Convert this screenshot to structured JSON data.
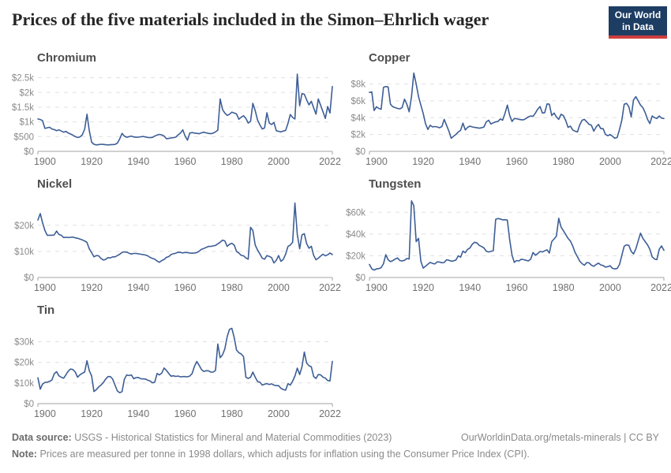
{
  "header": {
    "title": "Prices of the five materials included in the Simon–Ehrlich wager",
    "logo": {
      "line1": "Our World",
      "line2": "in Data",
      "bg": "#1d3d63",
      "accent": "#cf3e3e"
    }
  },
  "style": {
    "line_color": "#3d5e96",
    "grid_color": "#e0e0e0",
    "axis_color": "#a3a3a3",
    "y_label_color": "#8b8b8b",
    "x_label_color": "#707070"
  },
  "chart_data": [
    {
      "type": "line",
      "title": "Chromium",
      "x_range": [
        1897,
        2023
      ],
      "y_range": [
        0,
        2730
      ],
      "start_year": 1897,
      "x_ticks": [
        1900,
        1920,
        1940,
        1960,
        1980,
        2000,
        2022
      ],
      "y_ticks": [
        {
          "value": 0,
          "label": "$0"
        },
        {
          "value": 500,
          "label": "$500"
        },
        {
          "value": 1000,
          "label": "$1k"
        },
        {
          "value": 1500,
          "label": "$1.5k"
        },
        {
          "value": 2000,
          "label": "$2k"
        },
        {
          "value": 2500,
          "label": "$2.5k"
        }
      ],
      "values": [
        1100,
        1080,
        1040,
        780,
        800,
        820,
        760,
        740,
        700,
        730,
        690,
        650,
        680,
        620,
        590,
        550,
        500,
        470,
        490,
        560,
        750,
        1260,
        700,
        310,
        240,
        220,
        230,
        240,
        235,
        225,
        220,
        225,
        230,
        235,
        280,
        420,
        610,
        520,
        480,
        500,
        520,
        490,
        480,
        485,
        495,
        505,
        490,
        475,
        465,
        475,
        520,
        555,
        575,
        560,
        520,
        430,
        440,
        455,
        465,
        485,
        560,
        620,
        730,
        520,
        380,
        620,
        640,
        620,
        610,
        600,
        630,
        650,
        630,
        610,
        600,
        620,
        660,
        720,
        1780,
        1420,
        1300,
        1220,
        1260,
        1330,
        1300,
        1270,
        1090,
        1160,
        1210,
        1120,
        960,
        1020,
        1630,
        1380,
        1060,
        900,
        760,
        800,
        1310,
        960,
        910,
        980,
        700,
        680,
        660,
        690,
        710,
        950,
        1250,
        1150,
        1100,
        2620,
        1550,
        1960,
        1940,
        1750,
        1580,
        1700,
        1480,
        1260,
        1780,
        1560,
        1340,
        1120,
        1520,
        1300,
        2200
      ]
    },
    {
      "type": "line",
      "title": "Copper",
      "x_range": [
        1897,
        2023
      ],
      "y_range": [
        0,
        9550
      ],
      "start_year": 1897,
      "x_ticks": [
        1900,
        1920,
        1940,
        1960,
        1980,
        2000,
        2022
      ],
      "y_ticks": [
        {
          "value": 0,
          "label": "$0"
        },
        {
          "value": 2000,
          "label": "$2k"
        },
        {
          "value": 4000,
          "label": "$4k"
        },
        {
          "value": 6000,
          "label": "$6k"
        },
        {
          "value": 8000,
          "label": "$8k"
        }
      ],
      "values": [
        7000,
        7050,
        4850,
        5300,
        5100,
        5000,
        7600,
        7700,
        7650,
        5600,
        5300,
        5200,
        5100,
        5050,
        5200,
        6200,
        5600,
        4700,
        6500,
        9300,
        8000,
        6500,
        5500,
        4500,
        3300,
        2600,
        3100,
        2900,
        2950,
        2900,
        2800,
        2950,
        3800,
        3100,
        2400,
        1550,
        1800,
        2000,
        2300,
        2500,
        3350,
        2550,
        2850,
        3000,
        2900,
        2850,
        2800,
        2750,
        2800,
        2900,
        3500,
        3700,
        3250,
        3400,
        3500,
        3550,
        3850,
        3700,
        4500,
        5500,
        4300,
        3550,
        3900,
        3880,
        3800,
        3750,
        3750,
        3900,
        4100,
        4200,
        4150,
        4550,
        5000,
        5330,
        4550,
        4600,
        5640,
        5600,
        4250,
        4550,
        4100,
        3800,
        4400,
        4250,
        3650,
        2850,
        3000,
        2550,
        2400,
        2300,
        3150,
        3700,
        3800,
        3500,
        3200,
        3100,
        2400,
        2900,
        3200,
        2700,
        2700,
        2000,
        1850,
        2000,
        1800,
        1550,
        1650,
        2600,
        3700,
        5600,
        5700,
        5300,
        4100,
        6100,
        6500,
        6000,
        5500,
        5200,
        4600,
        3800,
        3300,
        4200,
        4000,
        3900,
        4200,
        3950,
        3900
      ]
    },
    {
      "type": "line",
      "title": "Nickel",
      "x_range": [
        1897,
        2023
      ],
      "y_range": [
        0,
        30800
      ],
      "start_year": 1897,
      "x_ticks": [
        1900,
        1920,
        1940,
        1960,
        1980,
        2000,
        2022
      ],
      "y_ticks": [
        {
          "value": 0,
          "label": "$0"
        },
        {
          "value": 10000,
          "label": "$10k"
        },
        {
          "value": 20000,
          "label": "$20k"
        }
      ],
      "values": [
        22000,
        24500,
        21000,
        18000,
        16200,
        16200,
        16200,
        16300,
        17800,
        16500,
        16200,
        15300,
        15400,
        15300,
        15400,
        15500,
        15200,
        15000,
        14700,
        14400,
        14000,
        13400,
        11000,
        9500,
        7900,
        8400,
        8300,
        7300,
        6700,
        6900,
        7600,
        7500,
        7900,
        7900,
        8400,
        8900,
        9600,
        9800,
        9700,
        9300,
        9000,
        9200,
        9200,
        9100,
        8900,
        8800,
        8600,
        8300,
        7700,
        7300,
        7000,
        6300,
        5800,
        6500,
        6900,
        7700,
        8000,
        8800,
        9100,
        9300,
        9700,
        9600,
        9400,
        9600,
        9500,
        9400,
        9300,
        9400,
        9500,
        10100,
        10800,
        11100,
        11500,
        11900,
        11900,
        12100,
        12300,
        12900,
        13500,
        14300,
        14000,
        11900,
        12700,
        13100,
        12400,
        10000,
        9400,
        8500,
        8300,
        7500,
        7000,
        19200,
        18000,
        12400,
        10500,
        9000,
        7400,
        7000,
        8400,
        8100,
        7600,
        5600,
        6600,
        8400,
        6200,
        6900,
        8900,
        11900,
        12400,
        13500,
        28500,
        16500,
        11000,
        16300,
        16800,
        13000,
        11200,
        12000,
        8500,
        6800,
        7400,
        8200,
        8900,
        8300,
        8700,
        9400,
        8800
      ]
    },
    {
      "type": "line",
      "title": "Tungsten",
      "x_range": [
        1897,
        2023
      ],
      "y_range": [
        0,
        74000
      ],
      "start_year": 1897,
      "x_ticks": [
        1900,
        1920,
        1940,
        1960,
        1980,
        2000,
        2022
      ],
      "y_ticks": [
        {
          "value": 0,
          "label": "$0"
        },
        {
          "value": 20000,
          "label": "$20k"
        },
        {
          "value": 40000,
          "label": "$40k"
        },
        {
          "value": 60000,
          "label": "$60k"
        }
      ],
      "values": [
        12000,
        8000,
        6800,
        7900,
        8200,
        9100,
        12700,
        21000,
        16300,
        14600,
        15500,
        17000,
        18000,
        15600,
        15200,
        15800,
        17500,
        17000,
        70500,
        66000,
        33000,
        36000,
        15000,
        8600,
        10300,
        12200,
        13900,
        13000,
        12500,
        14400,
        14200,
        13600,
        13800,
        16300,
        15800,
        15000,
        15300,
        16000,
        19900,
        18700,
        24200,
        22800,
        25900,
        27100,
        30700,
        32400,
        31800,
        29500,
        28500,
        27100,
        24200,
        23500,
        24000,
        24700,
        53500,
        54300,
        53800,
        53000,
        53200,
        52800,
        35000,
        20600,
        13900,
        15600,
        15200,
        16800,
        16400,
        15800,
        15200,
        17000,
        23000,
        20500,
        22000,
        24000,
        23500,
        24500,
        25500,
        22500,
        33000,
        35500,
        38000,
        54500,
        46500,
        43000,
        39500,
        36000,
        33500,
        29000,
        23000,
        19000,
        15000,
        12700,
        11300,
        13700,
        13400,
        11300,
        10300,
        12000,
        13200,
        11500,
        11000,
        9600,
        10000,
        10800,
        8400,
        7900,
        8300,
        12000,
        20400,
        28800,
        30000,
        29500,
        24000,
        21600,
        26400,
        33600,
        40800,
        36000,
        33000,
        30000,
        26000,
        19000,
        17000,
        16500,
        26000,
        29000,
        25000
      ]
    },
    {
      "type": "line",
      "title": "Tin",
      "x_range": [
        1897,
        2023
      ],
      "y_range": [
        0,
        39000
      ],
      "start_year": 1897,
      "x_ticks": [
        1900,
        1920,
        1940,
        1960,
        1980,
        2000,
        2022
      ],
      "y_ticks": [
        {
          "value": 0,
          "label": "$0"
        },
        {
          "value": 10000,
          "label": "$10k"
        },
        {
          "value": 20000,
          "label": "$20k"
        },
        {
          "value": 30000,
          "label": "$30k"
        }
      ],
      "values": [
        12500,
        7000,
        9500,
        10300,
        10400,
        10800,
        11500,
        14500,
        15500,
        13500,
        12800,
        12300,
        14000,
        15800,
        16800,
        16500,
        15300,
        12800,
        14000,
        14700,
        15300,
        20800,
        16000,
        13400,
        5900,
        6800,
        8100,
        9000,
        10200,
        11900,
        13100,
        13100,
        11900,
        9000,
        6100,
        5300,
        5800,
        11800,
        13900,
        13600,
        13900,
        12100,
        12600,
        12700,
        12100,
        12000,
        11900,
        11400,
        11000,
        10100,
        10400,
        14600,
        13900,
        14800,
        17300,
        16100,
        14600,
        13300,
        13500,
        13200,
        13400,
        13000,
        13100,
        13100,
        13000,
        13400,
        14600,
        18100,
        20400,
        18600,
        16500,
        15600,
        16000,
        15900,
        15300,
        15300,
        16100,
        28900,
        22300,
        23700,
        26500,
        32500,
        36000,
        36500,
        32000,
        26000,
        24700,
        24100,
        22800,
        12800,
        12200,
        12800,
        15300,
        12800,
        10700,
        10400,
        9000,
        9400,
        9700,
        9300,
        9600,
        9000,
        8700,
        8700,
        7400,
        6900,
        6500,
        9700,
        9000,
        10900,
        13400,
        17200,
        14100,
        17800,
        25000,
        19700,
        18400,
        17800,
        13200,
        12200,
        14100,
        13900,
        12800,
        12400,
        11200,
        11000,
        20500
      ]
    }
  ],
  "footer": {
    "source_label": "Data source:",
    "source_text": "USGS - Historical Statistics for Mineral and Material Commodities (2023)",
    "credit": "OurWorldinData.org/metals-minerals | CC BY",
    "note_label": "Note:",
    "note_text": "Prices are measured per tonne in 1998 dollars, which adjusts for inflation using the Consumer Price Index (CPI)."
  }
}
